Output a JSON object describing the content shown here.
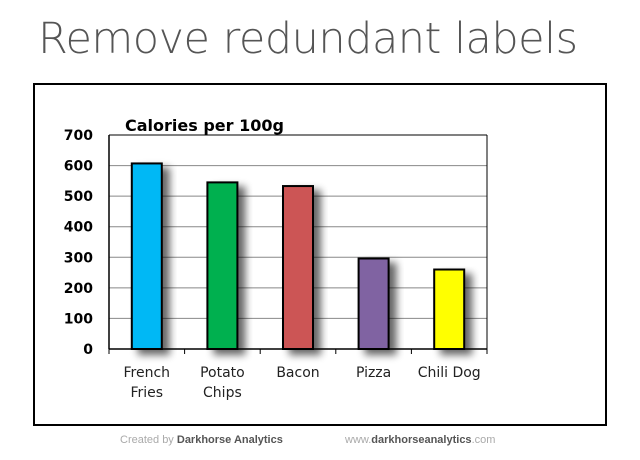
{
  "slide_title": "Remove redundant labels",
  "chart_data": {
    "type": "bar",
    "title": "Calories per 100g",
    "categories": [
      "French\nFries",
      "Potato\nChips",
      "Bacon",
      "Pizza",
      "Chili Dog"
    ],
    "values": [
      607,
      545,
      533,
      296,
      260
    ],
    "colors": [
      "#00b8f5",
      "#00b050",
      "#cc5555",
      "#8064a2",
      "#ffff00"
    ],
    "ylim": [
      0,
      700
    ],
    "yticks": [
      0,
      100,
      200,
      300,
      400,
      500,
      600,
      700
    ],
    "grid": true,
    "legend": "none",
    "xlabel": "",
    "ylabel": ""
  },
  "footer": {
    "created_prefix": "Created by",
    "created_brand": "Darkhorse Analytics",
    "url_prefix": "www.",
    "url_brand": "darkhorseanalytics",
    "url_suffix": ".com"
  }
}
